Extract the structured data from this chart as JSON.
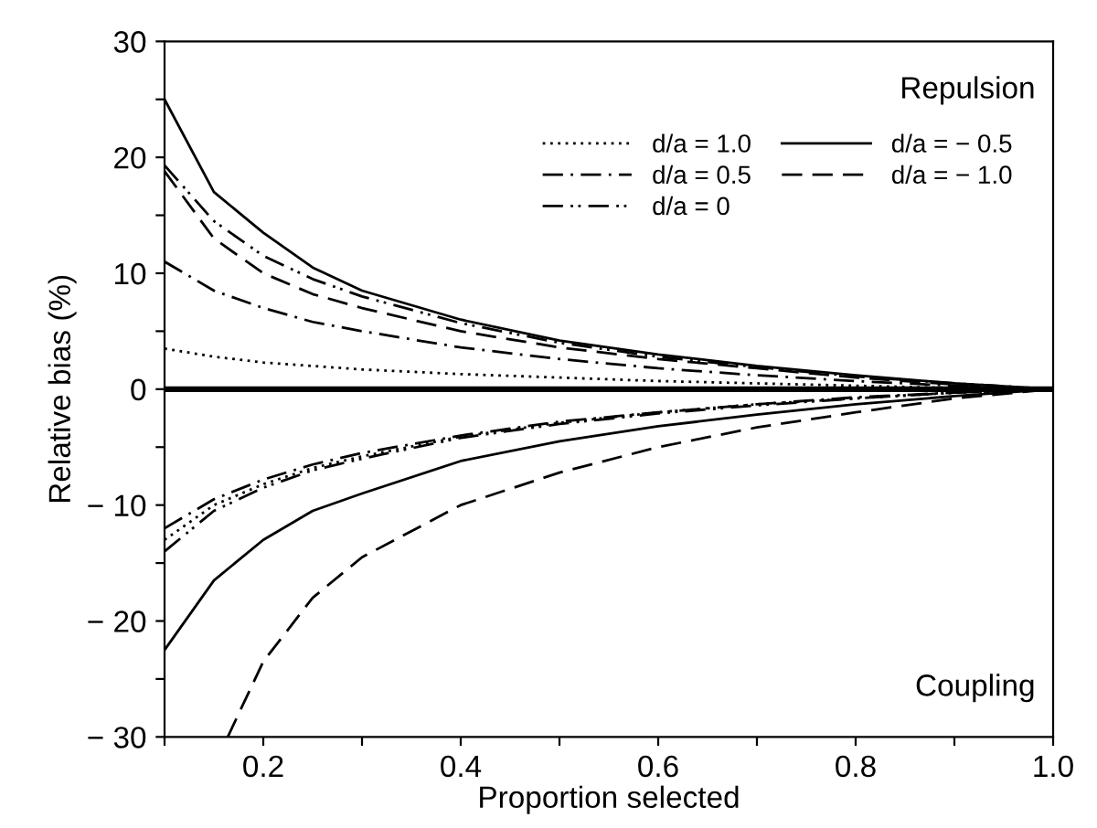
{
  "chart_data": {
    "type": "line",
    "xlabel": "Proportion selected",
    "ylabel": "Relative bias (%)",
    "x": [
      0.1,
      0.15,
      0.2,
      0.25,
      0.3,
      0.4,
      0.5,
      0.6,
      0.7,
      0.8,
      0.9,
      1.0
    ],
    "series": [
      {
        "name": "d/a = 1.0",
        "color": "#000000",
        "line_style": "dotted",
        "values": [
          3.5,
          2.8,
          2.3,
          2.0,
          1.7,
          1.3,
          1.0,
          0.7,
          0.5,
          0.3,
          0.1,
          0
        ]
      },
      {
        "name": "d/a = 0.5",
        "color": "#000000",
        "line_style": "dashdot",
        "values": [
          11,
          8.5,
          7,
          5.8,
          5,
          3.6,
          2.6,
          1.8,
          1.2,
          0.7,
          0.3,
          0
        ]
      },
      {
        "name": "d/a = 0",
        "color": "#000000",
        "line_style": "dashdotdot",
        "values": [
          19.3,
          14.5,
          11.5,
          9.5,
          8,
          5.7,
          4,
          2.8,
          1.9,
          1.1,
          0.5,
          0
        ]
      },
      {
        "name": "d/a = − 0.5",
        "color": "#000000",
        "line_style": "solid",
        "values": [
          25,
          17,
          13.5,
          10.5,
          8.5,
          6,
          4.2,
          3,
          2,
          1.2,
          0.5,
          0
        ]
      },
      {
        "name": "d/a = − 1.0",
        "color": "#000000",
        "line_style": "dashed",
        "values": [
          18.8,
          13,
          10,
          8.2,
          7,
          5,
          3.6,
          2.6,
          1.8,
          1.0,
          0.4,
          0
        ]
      },
      {
        "color": "#000000",
        "line_style": "dotted",
        "values": [
          -13,
          -10,
          -8.2,
          -6.8,
          -5.8,
          -4.1,
          -2.9,
          -2.0,
          -1.3,
          -0.8,
          -0.3,
          0
        ]
      },
      {
        "color": "#000000",
        "line_style": "dashdot",
        "values": [
          -12,
          -9.5,
          -7.8,
          -6.5,
          -5.5,
          -4,
          -2.8,
          -2,
          -1.3,
          -0.7,
          -0.3,
          0
        ]
      },
      {
        "color": "#000000",
        "line_style": "dashdotdot",
        "values": [
          -14,
          -10.5,
          -8.5,
          -7,
          -6,
          -4.2,
          -3,
          -2.1,
          -1.4,
          -0.8,
          -0.3,
          0
        ]
      },
      {
        "color": "#000000",
        "line_style": "solid",
        "values": [
          -22.5,
          -16.5,
          -13,
          -10.5,
          -9,
          -6.2,
          -4.5,
          -3.2,
          -2.2,
          -1.3,
          -0.6,
          0
        ]
      },
      {
        "color": "#000000",
        "line_style": "dashed",
        "x": [
          0.164,
          0.2,
          0.25,
          0.3,
          0.4,
          0.5,
          0.6,
          0.7,
          0.8,
          0.9,
          1.0
        ],
        "values": [
          -30,
          -23.5,
          -18,
          -14.5,
          -10,
          -7.2,
          -5,
          -3.3,
          -2,
          -0.8,
          0
        ]
      }
    ],
    "xlim": [
      0.1,
      1.0
    ],
    "ylim": [
      -30,
      30
    ],
    "xticks": [
      {
        "value": 0.1,
        "label": null
      },
      0.2,
      {
        "value": 0.3,
        "label": null
      },
      0.4,
      {
        "value": 0.5,
        "label": null
      },
      0.6,
      {
        "value": 0.7,
        "label": null
      },
      0.8,
      {
        "value": 0.9,
        "label": null
      },
      {
        "value": 1.0,
        "label": "1.0"
      }
    ],
    "yticks": [
      {
        "value": -30,
        "label": "− 30"
      },
      {
        "value": -25,
        "label": null
      },
      {
        "value": -20,
        "label": "− 20"
      },
      {
        "value": -15,
        "label": null
      },
      {
        "value": -10,
        "label": "− 10"
      },
      {
        "value": -5,
        "label": null
      },
      0,
      {
        "value": 5,
        "label": null
      },
      10,
      {
        "value": 15,
        "label": null
      },
      20,
      {
        "value": 25,
        "label": null
      },
      30
    ],
    "ref_lines": [
      {
        "axis": "y",
        "value": 0,
        "color": "#000000"
      }
    ],
    "annotations": [
      "Repulsion",
      "Coupling"
    ],
    "legend": "top right",
    "grid": false
  }
}
